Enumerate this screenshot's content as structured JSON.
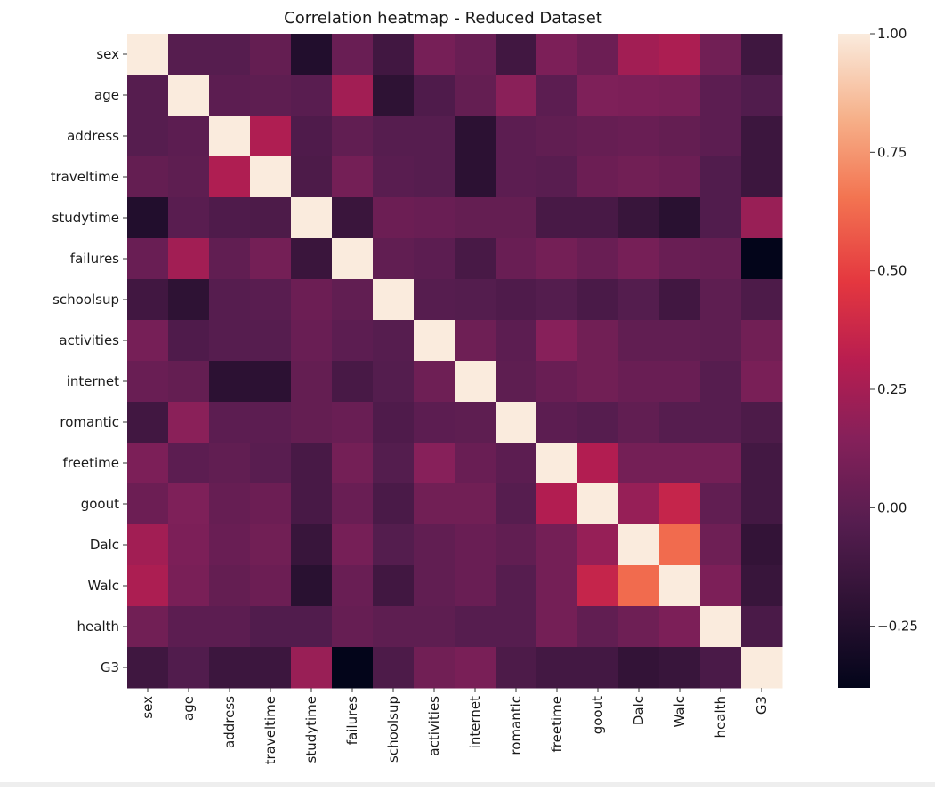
{
  "chart_data": {
    "type": "heatmap",
    "title": "Correlation heatmap - Reduced Dataset",
    "xlabel": "",
    "ylabel": "",
    "variables": [
      "sex",
      "age",
      "address",
      "traveltime",
      "studytime",
      "failures",
      "schoolsup",
      "activities",
      "internet",
      "romantic",
      "freetime",
      "goout",
      "Dalc",
      "Walc",
      "health",
      "G3"
    ],
    "matrix": [
      [
        1.0,
        -0.03,
        -0.03,
        0.02,
        -0.25,
        0.04,
        -0.12,
        0.09,
        0.04,
        -0.12,
        0.11,
        0.05,
        0.24,
        0.27,
        0.07,
        -0.13
      ],
      [
        -0.03,
        1.0,
        -0.01,
        0.0,
        -0.02,
        0.24,
        -0.2,
        -0.06,
        0.02,
        0.16,
        -0.01,
        0.12,
        0.11,
        0.1,
        -0.01,
        -0.05
      ],
      [
        -0.03,
        -0.01,
        1.0,
        0.28,
        -0.06,
        0.01,
        -0.03,
        -0.03,
        -0.21,
        -0.01,
        0.01,
        0.03,
        0.04,
        0.02,
        -0.01,
        -0.14
      ],
      [
        0.02,
        0.0,
        0.28,
        1.0,
        -0.07,
        0.08,
        -0.02,
        -0.03,
        -0.21,
        -0.01,
        -0.02,
        0.05,
        0.07,
        0.05,
        -0.05,
        -0.14
      ],
      [
        -0.25,
        -0.02,
        -0.06,
        -0.07,
        1.0,
        -0.15,
        0.05,
        0.04,
        0.02,
        0.02,
        -0.09,
        -0.09,
        -0.16,
        -0.22,
        -0.05,
        0.21
      ],
      [
        0.04,
        0.24,
        0.01,
        0.08,
        -0.15,
        1.0,
        0.01,
        -0.01,
        -0.09,
        0.04,
        0.08,
        0.04,
        0.09,
        0.04,
        0.03,
        -0.38
      ],
      [
        -0.12,
        -0.2,
        -0.03,
        -0.02,
        0.05,
        0.01,
        1.0,
        -0.03,
        -0.04,
        -0.06,
        -0.04,
        -0.08,
        -0.04,
        -0.12,
        0.0,
        -0.07
      ],
      [
        0.09,
        -0.06,
        -0.03,
        -0.03,
        0.04,
        -0.01,
        -0.03,
        1.0,
        0.06,
        -0.01,
        0.15,
        0.07,
        0.01,
        0.01,
        0.0,
        0.07
      ],
      [
        0.04,
        0.02,
        -0.21,
        -0.21,
        0.02,
        -0.09,
        -0.04,
        0.06,
        1.0,
        0.0,
        0.04,
        0.07,
        0.04,
        0.04,
        -0.03,
        0.1
      ],
      [
        -0.12,
        0.16,
        -0.01,
        -0.01,
        0.02,
        0.04,
        -0.06,
        -0.01,
        0.0,
        1.0,
        -0.01,
        -0.03,
        0.01,
        -0.03,
        -0.03,
        -0.07
      ],
      [
        0.11,
        -0.01,
        0.01,
        -0.02,
        -0.09,
        0.08,
        -0.04,
        0.15,
        0.04,
        -0.01,
        1.0,
        0.29,
        0.08,
        0.08,
        0.08,
        -0.11
      ],
      [
        0.05,
        0.12,
        0.03,
        0.05,
        -0.09,
        0.04,
        -0.08,
        0.07,
        0.07,
        -0.03,
        0.29,
        1.0,
        0.2,
        0.36,
        0.01,
        -0.11
      ],
      [
        0.24,
        0.11,
        0.04,
        0.07,
        -0.16,
        0.09,
        -0.04,
        0.01,
        0.04,
        0.01,
        0.08,
        0.2,
        1.0,
        0.63,
        0.06,
        -0.18
      ],
      [
        0.27,
        0.1,
        0.02,
        0.05,
        -0.22,
        0.04,
        -0.12,
        0.01,
        0.04,
        -0.03,
        0.08,
        0.36,
        0.63,
        1.0,
        0.11,
        -0.16
      ],
      [
        0.07,
        -0.01,
        -0.01,
        -0.05,
        -0.05,
        0.03,
        0.0,
        0.0,
        -0.03,
        -0.03,
        0.08,
        0.01,
        0.06,
        0.11,
        1.0,
        -0.08
      ],
      [
        -0.13,
        -0.05,
        -0.14,
        -0.14,
        0.21,
        -0.38,
        -0.07,
        0.07,
        0.1,
        -0.07,
        -0.11,
        -0.11,
        -0.18,
        -0.16,
        -0.08,
        1.0
      ]
    ],
    "colorbar": {
      "vmin": -0.38,
      "vmax": 1.0,
      "ticks": [
        -0.25,
        0.0,
        0.25,
        0.5,
        0.75,
        1.0
      ],
      "tick_labels": [
        "−0.25",
        "0.00",
        "0.25",
        "0.50",
        "0.75",
        "1.00"
      ]
    },
    "colormap": "rocket",
    "grid": false,
    "legend": "colorbar-right"
  }
}
